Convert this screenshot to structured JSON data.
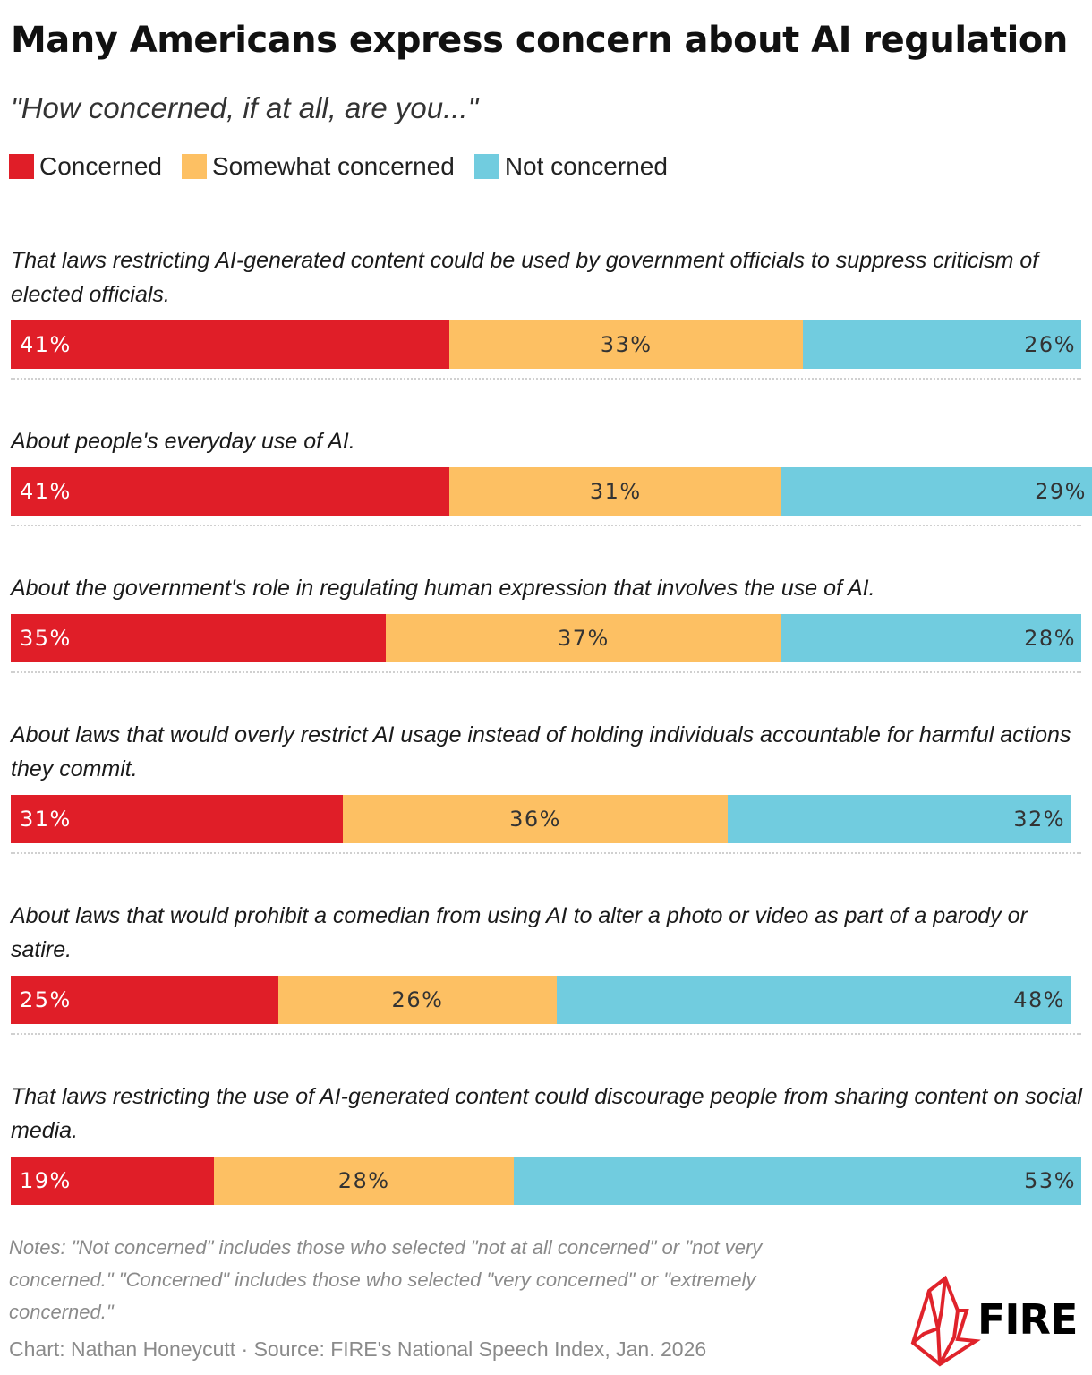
{
  "title": "Many Americans express concern about AI regulation",
  "subtitle": "\"How concerned, if at all, are you...\"",
  "legend": [
    {
      "label": "Concerned",
      "color": "#e01e28"
    },
    {
      "label": "Somewhat concerned",
      "color": "#fdc063"
    },
    {
      "label": "Not concerned",
      "color": "#71ccdf"
    }
  ],
  "chart_data": {
    "type": "bar",
    "orientation": "horizontal-stacked",
    "categories": [
      "That laws restricting AI-generated content could be used by government officials to suppress criticism of elected officials.",
      "About people's everyday use of AI.",
      "About the government's role in regulating human expression that involves the use of AI.",
      "About laws that would overly restrict AI usage instead of holding individuals accountable for harmful actions they commit.",
      "About laws that would prohibit a comedian from using AI to alter a photo or video as part of a parody or satire.",
      "That laws restricting the use of AI-generated content could discourage people from sharing content on social media."
    ],
    "series": [
      {
        "name": "Concerned",
        "color": "#e01e28",
        "values": [
          41,
          41,
          35,
          31,
          25,
          19
        ]
      },
      {
        "name": "Somewhat concerned",
        "color": "#fdc063",
        "values": [
          33,
          31,
          37,
          36,
          26,
          28
        ]
      },
      {
        "name": "Not concerned",
        "color": "#71ccdf",
        "values": [
          26,
          29,
          28,
          32,
          48,
          53
        ]
      }
    ],
    "value_suffix": "%",
    "xlim": [
      0,
      100
    ],
    "legend_position": "top-left",
    "grid": false
  },
  "notes": "Notes: \"Not concerned\" includes those who selected \"not at all concerned\" or \"not very concerned.\" \"Concerned\" includes those who selected \"very concerned\" or \"extremely concerned.\"",
  "credit": "Chart: Nathan Honeycutt · Source: FIRE's National Speech Index, Jan. 2026",
  "logo_text": "FIRE"
}
